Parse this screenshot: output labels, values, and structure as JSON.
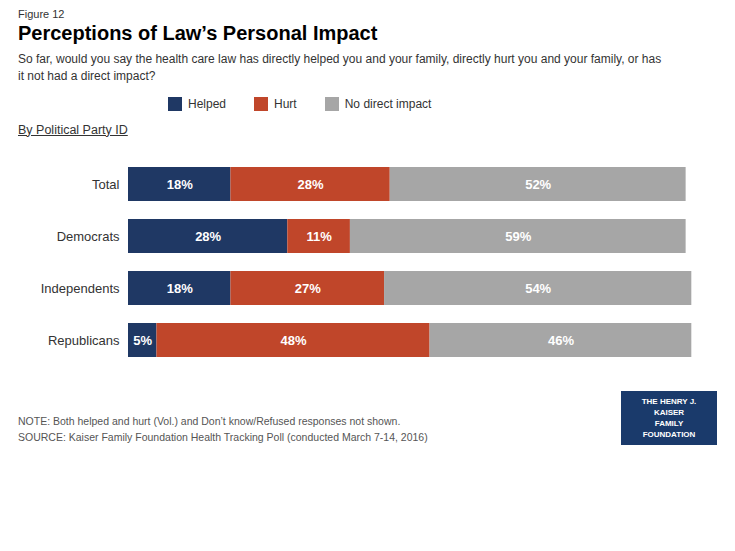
{
  "chart_data": {
    "type": "bar",
    "orientation": "horizontal",
    "stacked": true,
    "title": "Perceptions of Law’s Personal Impact",
    "subtitle": "So far, would you say the health care law has directly helped you and your family, directly hurt you and your family, or has\nit not had a direct impact?",
    "annotations": [
      "Figure 12",
      "By Political Party ID",
      "NOTE: Both helped and hurt (Vol.) and Don’t know/Refused responses not shown.\nSOURCE: Kaiser Family Foundation Health Tracking Poll (conducted March 7-14, 2016)",
      "THE HENRY J.\nKAISER\nFAMILY\nFOUNDATION"
    ],
    "categories": [
      "Total",
      "Democrats",
      "Independents",
      "Republicans"
    ],
    "series": [
      {
        "name": "Helped",
        "color": "#1f3864",
        "values": [
          18,
          28,
          18,
          5
        ],
        "value_labels": [
          "18%",
          "28%",
          "18%",
          "5%"
        ]
      },
      {
        "name": "Hurt",
        "color": "#c0462a",
        "values": [
          28,
          11,
          27,
          48
        ],
        "value_labels": [
          "28%",
          "11%",
          "27%",
          "48%"
        ]
      },
      {
        "name": "No direct impact",
        "color": "#a6a6a6",
        "values": [
          52,
          59,
          54,
          46
        ],
        "value_labels": [
          "52%",
          "59%",
          "54%",
          "46%"
        ]
      }
    ],
    "xlim": [
      0,
      100
    ],
    "data_labels": true,
    "tick_labels": "y",
    "grid": false,
    "legend": "top"
  }
}
